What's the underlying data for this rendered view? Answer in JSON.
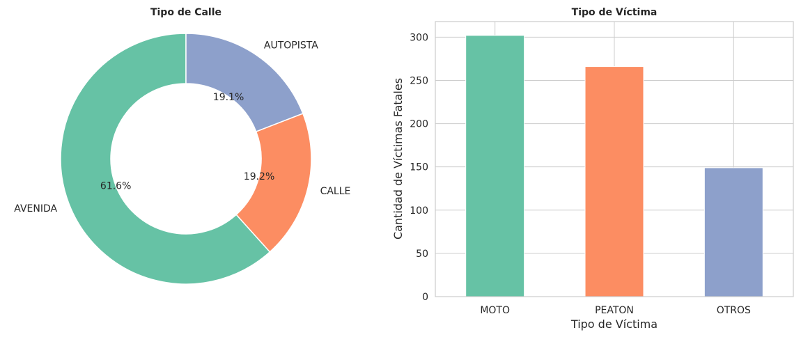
{
  "chart_data": [
    {
      "type": "pie",
      "title": "Tipo de Calle",
      "donut": true,
      "slices": [
        {
          "label": "AVENIDA",
          "value": 61.6,
          "pct_label": "61.6%",
          "color": "#66c2a5"
        },
        {
          "label": "CALLE",
          "value": 19.2,
          "pct_label": "19.2%",
          "color": "#fc8d62"
        },
        {
          "label": "AUTOPISTA",
          "value": 19.1,
          "pct_label": "19.1%",
          "color": "#8da0cb"
        }
      ]
    },
    {
      "type": "bar",
      "title": "Tipo de Víctima",
      "xlabel": "Tipo de Víctima",
      "ylabel": "Cantidad de Víctimas Fatales",
      "categories": [
        "MOTO",
        "PEATON",
        "OTROS"
      ],
      "values": [
        302,
        266,
        149
      ],
      "colors": [
        "#66c2a5",
        "#fc8d62",
        "#8da0cb"
      ],
      "ylim": [
        0,
        318
      ],
      "yticks": [
        0,
        50,
        100,
        150,
        200,
        250,
        300
      ],
      "grid": true
    }
  ]
}
